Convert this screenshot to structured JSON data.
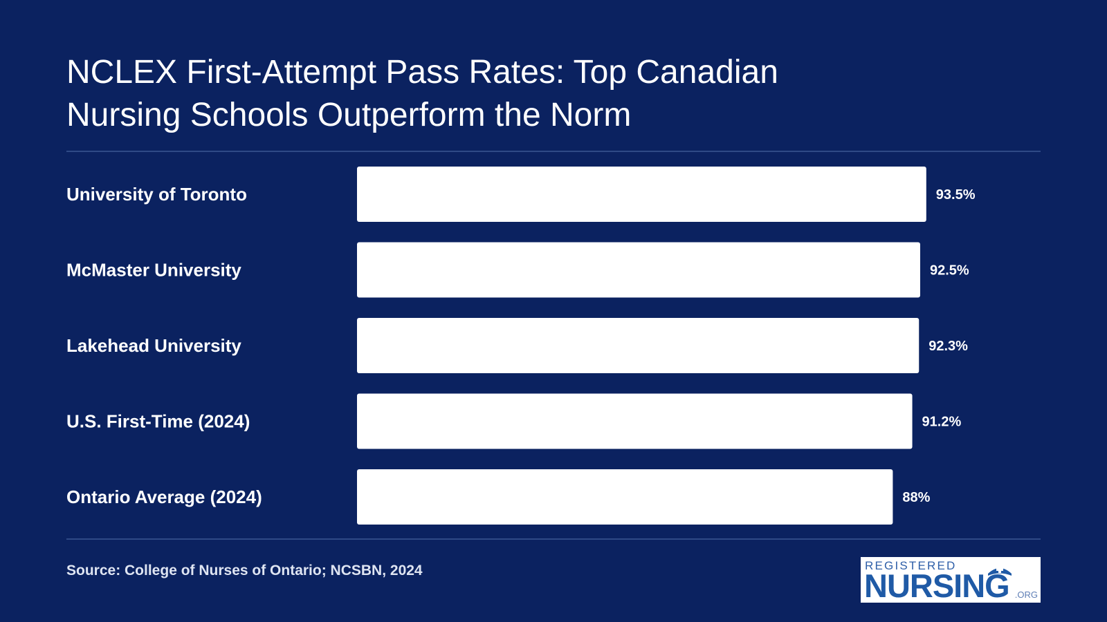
{
  "title": {
    "line1": "NCLEX First-Attempt Pass Rates: Top Canadian",
    "line2": "Nursing Schools Outperform the Norm"
  },
  "source": "Source: College of Nurses of Ontario; NCSBN, 2024",
  "logo": {
    "top": "REGISTERED",
    "main": "NURSING",
    "suffix": ".ORG"
  },
  "colors": {
    "background": "#0b2260",
    "bar": "#ffffff",
    "text": "#ffffff",
    "logo_blue": "#1f5aa6"
  },
  "chart_data": {
    "type": "bar",
    "orientation": "horizontal",
    "categories": [
      "University of Toronto",
      "McMaster University",
      "Lakehead University",
      "U.S. First-Time (2024)",
      "Ontario Average (2024)"
    ],
    "values": [
      93.5,
      92.5,
      92.3,
      91.2,
      88
    ],
    "value_labels": [
      "93.5%",
      "92.5%",
      "92.3%",
      "91.2%",
      "88%"
    ],
    "unit": "%",
    "title": "NCLEX First-Attempt Pass Rates: Top Canadian Nursing Schools Outperform the Norm",
    "xlabel": "",
    "ylabel": "",
    "xlim": [
      0,
      100
    ],
    "grid": false,
    "legend": "none"
  }
}
